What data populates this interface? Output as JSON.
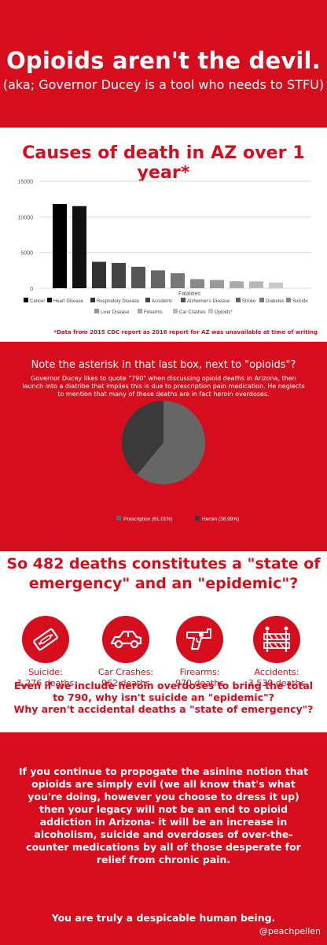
{
  "header": {
    "title": "Opioids aren't the devil.",
    "subtitle": "(aka; Governor Ducey is a tool who needs to STFU)"
  },
  "causes_section": {
    "title": "Causes of death in AZ over 1 year*",
    "footnote": "*Data from 2015 CDC report as 2016 report for AZ was unavailable at time of writing"
  },
  "opioid_section": {
    "title": "Note the asterisk in that last box, next to \"opioids\"?",
    "body": "Governor Ducey likes to quote \"790\" when discussing opioid deaths in Arizona, then launch into a diatribe that implies this is due to prescription pain medication. He neglects to mention that many of these deaths are in fact heroin overdoses."
  },
  "emergency_section": {
    "title": "So 482 deaths constitutes a \"state of emergency\" and an \"epidemic\"?",
    "stats": [
      {
        "label": "Suicide:",
        "value": "1,276 deaths",
        "icon": "razor-blade-icon"
      },
      {
        "label": "Car Crashes:",
        "value": "962 deaths",
        "icon": "car-icon"
      },
      {
        "label": "Firearms:",
        "value": "970 deaths",
        "icon": "revolver-icon"
      },
      {
        "label": "Accidents:",
        "value": "3,539 deaths",
        "icon": "road-barrier-icon"
      }
    ],
    "question_1": "Even if we include heroin overdoses to bring the total to 790, why isn't suicide an \"epidemic\"?",
    "question_2": "Why aren't accidental deaths a \"state of emergency\"?"
  },
  "closing": {
    "paragraph": "If you continue to propogate the asinine notion that opioids are simply evil (we all know that's what you're doing, however you choose to dress it up) then your legacy will not be an end to opioid addiction in Arizona- it will be an increase in alcoholism, suicide and overdoses of over-the-counter medications by all of those desperate for relief from chronic pain.",
    "sign_off": "You are truly a despicable human being.",
    "handle": "@peachpellen"
  },
  "colors": {
    "brand_red": "#d50d1c",
    "white": "#ffffff"
  },
  "chart_data": [
    {
      "type": "bar",
      "title": "",
      "xlabel": "Fatalities",
      "ylabel": "",
      "ylim": [
        0,
        15000
      ],
      "yticks": [
        0,
        5000,
        10000,
        15000
      ],
      "grid": true,
      "legend_position": "bottom",
      "categories": [
        "Cancer",
        "Heart Disease",
        "Respiratory Disease",
        "Accidents",
        "Alzheimer's Disease",
        "Stroke",
        "Diabetes",
        "Suicide",
        "Liver Disease",
        "Firearms",
        "Car Crashes",
        "Opioids*"
      ],
      "values": [
        11800,
        11500,
        3700,
        3539,
        3000,
        2500,
        2100,
        1276,
        1150,
        970,
        962,
        790
      ],
      "colors": [
        "#000000",
        "#111111",
        "#333333",
        "#444444",
        "#555555",
        "#666666",
        "#777777",
        "#888888",
        "#999999",
        "#aaaaaa",
        "#b8b8b8",
        "#c8c8c8"
      ]
    },
    {
      "type": "pie",
      "title": "",
      "legend_position": "bottom",
      "slices": [
        {
          "label": "Prescription (61.01%)",
          "value": 61.01,
          "color": "#666666"
        },
        {
          "label": "Heroin (38.99%)",
          "value": 38.99,
          "color": "#3a3a3a"
        }
      ]
    }
  ]
}
